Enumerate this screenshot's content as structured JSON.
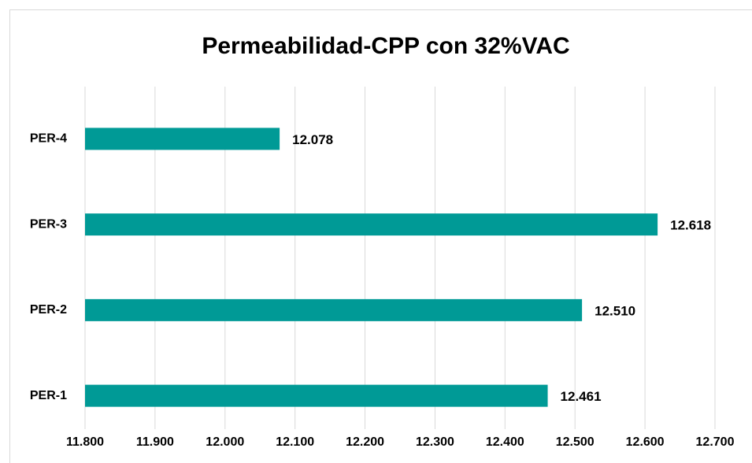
{
  "chart_data": {
    "type": "bar",
    "orientation": "horizontal",
    "title": "Permeabilidad-CPP con 32%VAC",
    "categories": [
      "PER-1",
      "PER-2",
      "PER-3",
      "PER-4"
    ],
    "values": [
      12.461,
      12.51,
      12.618,
      12.078
    ],
    "value_labels": [
      "12.461",
      "12.510",
      "12.618",
      "12.078"
    ],
    "color": "#009a96",
    "xlim": [
      11.8,
      12.7
    ],
    "xticks": [
      {
        "value": 11.8,
        "label": "11.800"
      },
      {
        "value": 11.9,
        "label": "11.900"
      },
      {
        "value": 12.0,
        "label": "12.000"
      },
      {
        "value": 12.1,
        "label": "12.100"
      },
      {
        "value": 12.2,
        "label": "12.200"
      },
      {
        "value": 12.3,
        "label": "12.300"
      },
      {
        "value": 12.4,
        "label": "12.400"
      },
      {
        "value": 12.5,
        "label": "12.500"
      },
      {
        "value": 12.6,
        "label": "12.600"
      },
      {
        "value": 12.7,
        "label": "12.700"
      }
    ],
    "grid": true
  }
}
